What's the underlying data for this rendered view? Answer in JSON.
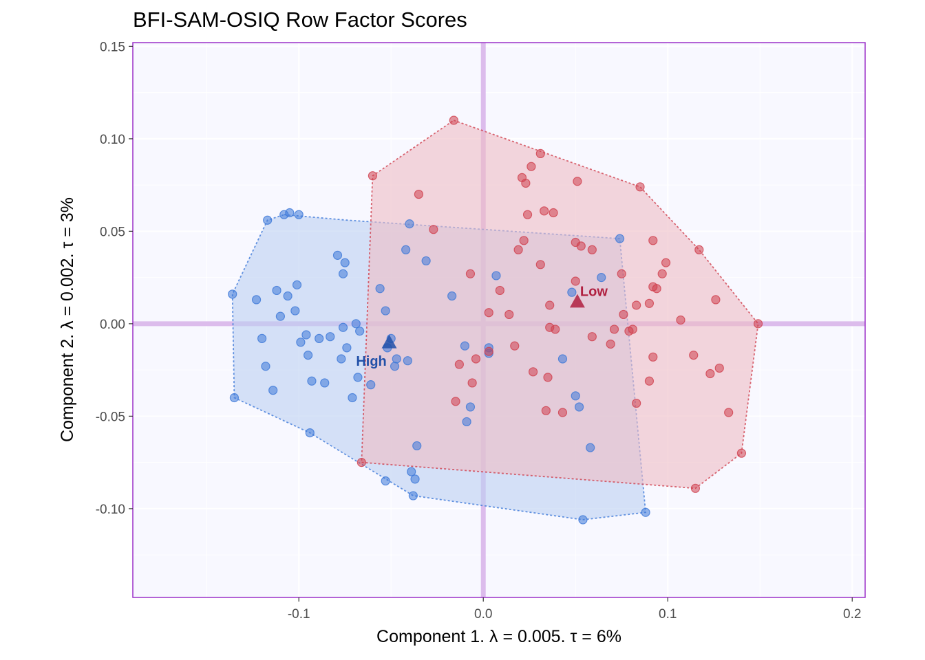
{
  "chart_data": {
    "type": "scatter",
    "title": "BFI-SAM-OSIQ Row Factor Scores",
    "xlabel": "Component 1.   λ = 0.005.  τ = 6%",
    "ylabel": "Component 2.   λ = 0.002.  τ = 3%",
    "xlim": [
      -0.19,
      0.207
    ],
    "ylim": [
      -0.148,
      0.152
    ],
    "xticks": [
      -0.1,
      0.0,
      0.1,
      0.2
    ],
    "xtick_labels": [
      "-0.1",
      "0.0",
      "0.1",
      "0.2"
    ],
    "yticks": [
      -0.1,
      -0.05,
      0.0,
      0.05,
      0.1,
      0.15
    ],
    "ytick_labels": [
      "-0.10",
      "-0.05",
      "0.00",
      "0.05",
      "0.10",
      "0.15"
    ],
    "grid": true,
    "background_color": "#f8f8ff",
    "border_color": "#9b30c8",
    "origin_line_color": "#dcbcec",
    "groups": [
      {
        "name": "High",
        "color": "#3c78d8",
        "fill": "#bcd0f2",
        "label_color": "#2150a8",
        "mean": [
          -0.051,
          -0.01
        ],
        "hull": [
          [
            -0.108,
            0.059
          ],
          [
            -0.074,
            0.056
          ],
          [
            0.074,
            0.046
          ],
          [
            0.088,
            -0.102
          ],
          [
            0.054,
            -0.106
          ],
          [
            -0.038,
            -0.093
          ],
          [
            -0.094,
            -0.059
          ],
          [
            -0.135,
            -0.04
          ],
          [
            -0.136,
            0.016
          ],
          [
            -0.117,
            0.056
          ]
        ],
        "points": [
          [
            -0.105,
            0.06
          ],
          [
            -0.1,
            0.059
          ],
          [
            -0.108,
            0.059
          ],
          [
            -0.117,
            0.056
          ],
          [
            -0.079,
            0.037
          ],
          [
            -0.075,
            0.033
          ],
          [
            -0.076,
            0.027
          ],
          [
            -0.112,
            0.018
          ],
          [
            -0.101,
            0.021
          ],
          [
            -0.106,
            0.015
          ],
          [
            -0.136,
            0.016
          ],
          [
            -0.123,
            0.013
          ],
          [
            -0.11,
            0.004
          ],
          [
            -0.102,
            0.007
          ],
          [
            -0.076,
            -0.002
          ],
          [
            -0.069,
            0.0
          ],
          [
            -0.067,
            -0.004
          ],
          [
            -0.096,
            -0.006
          ],
          [
            -0.089,
            -0.008
          ],
          [
            -0.083,
            -0.007
          ],
          [
            -0.12,
            -0.008
          ],
          [
            -0.099,
            -0.01
          ],
          [
            -0.095,
            -0.017
          ],
          [
            -0.074,
            -0.013
          ],
          [
            -0.077,
            -0.019
          ],
          [
            -0.118,
            -0.023
          ],
          [
            -0.093,
            -0.031
          ],
          [
            -0.086,
            -0.032
          ],
          [
            -0.068,
            -0.029
          ],
          [
            -0.071,
            -0.04
          ],
          [
            -0.114,
            -0.036
          ],
          [
            -0.135,
            -0.04
          ],
          [
            -0.094,
            -0.059
          ],
          [
            -0.053,
            -0.085
          ],
          [
            -0.039,
            -0.08
          ],
          [
            -0.037,
            -0.084
          ],
          [
            -0.038,
            -0.093
          ],
          [
            -0.04,
            0.054
          ],
          [
            -0.042,
            0.04
          ],
          [
            -0.031,
            0.034
          ],
          [
            -0.056,
            0.019
          ],
          [
            -0.053,
            0.007
          ],
          [
            -0.05,
            -0.008
          ],
          [
            -0.052,
            -0.013
          ],
          [
            -0.047,
            -0.019
          ],
          [
            -0.041,
            -0.02
          ],
          [
            -0.048,
            -0.023
          ],
          [
            -0.061,
            -0.033
          ],
          [
            -0.036,
            -0.066
          ],
          [
            0.074,
            0.046
          ],
          [
            0.064,
            0.025
          ],
          [
            0.048,
            0.017
          ],
          [
            0.043,
            -0.019
          ],
          [
            0.05,
            -0.039
          ],
          [
            0.052,
            -0.045
          ],
          [
            0.058,
            -0.067
          ],
          [
            0.088,
            -0.102
          ],
          [
            0.054,
            -0.106
          ],
          [
            -0.017,
            0.015
          ],
          [
            -0.01,
            -0.012
          ],
          [
            -0.007,
            -0.045
          ],
          [
            -0.009,
            -0.053
          ],
          [
            0.007,
            0.026
          ],
          [
            0.003,
            -0.013
          ],
          [
            0.003,
            -0.016
          ]
        ]
      },
      {
        "name": "Low",
        "color": "#d0404e",
        "fill": "#eebcc4",
        "label_color": "#b02040",
        "mean": [
          0.051,
          0.012
        ],
        "hull": [
          [
            -0.016,
            0.11
          ],
          [
            0.085,
            0.074
          ],
          [
            0.117,
            0.04
          ],
          [
            0.149,
            0.0
          ],
          [
            0.14,
            -0.07
          ],
          [
            0.115,
            -0.089
          ],
          [
            -0.066,
            -0.075
          ],
          [
            -0.06,
            0.08
          ]
        ],
        "points": [
          [
            -0.016,
            0.11
          ],
          [
            -0.06,
            0.08
          ],
          [
            -0.035,
            0.07
          ],
          [
            0.031,
            0.092
          ],
          [
            0.026,
            0.085
          ],
          [
            0.021,
            0.079
          ],
          [
            0.023,
            0.076
          ],
          [
            0.051,
            0.077
          ],
          [
            0.085,
            0.074
          ],
          [
            0.033,
            0.061
          ],
          [
            0.038,
            0.06
          ],
          [
            0.024,
            0.059
          ],
          [
            -0.027,
            0.051
          ],
          [
            0.022,
            0.045
          ],
          [
            0.05,
            0.044
          ],
          [
            0.053,
            0.042
          ],
          [
            0.059,
            0.04
          ],
          [
            0.019,
            0.04
          ],
          [
            0.092,
            0.045
          ],
          [
            0.117,
            0.04
          ],
          [
            0.099,
            0.033
          ],
          [
            0.031,
            0.032
          ],
          [
            0.097,
            0.027
          ],
          [
            0.075,
            0.027
          ],
          [
            0.092,
            0.02
          ],
          [
            0.094,
            0.019
          ],
          [
            -0.007,
            0.027
          ],
          [
            0.009,
            0.018
          ],
          [
            0.05,
            0.023
          ],
          [
            0.126,
            0.013
          ],
          [
            0.09,
            0.011
          ],
          [
            0.083,
            0.01
          ],
          [
            0.036,
            0.01
          ],
          [
            0.003,
            0.006
          ],
          [
            0.014,
            0.005
          ],
          [
            0.076,
            0.005
          ],
          [
            0.107,
            0.002
          ],
          [
            0.149,
            0.0
          ],
          [
            0.036,
            -0.002
          ],
          [
            0.039,
            -0.003
          ],
          [
            0.071,
            -0.003
          ],
          [
            0.079,
            -0.004
          ],
          [
            0.081,
            -0.003
          ],
          [
            0.059,
            -0.007
          ],
          [
            0.069,
            -0.011
          ],
          [
            0.017,
            -0.012
          ],
          [
            0.003,
            -0.015
          ],
          [
            -0.004,
            -0.019
          ],
          [
            -0.013,
            -0.022
          ],
          [
            0.092,
            -0.018
          ],
          [
            0.114,
            -0.017
          ],
          [
            0.128,
            -0.024
          ],
          [
            0.123,
            -0.027
          ],
          [
            0.027,
            -0.026
          ],
          [
            0.035,
            -0.029
          ],
          [
            0.09,
            -0.031
          ],
          [
            -0.006,
            -0.032
          ],
          [
            -0.015,
            -0.042
          ],
          [
            0.083,
            -0.043
          ],
          [
            0.034,
            -0.047
          ],
          [
            0.043,
            -0.048
          ],
          [
            0.133,
            -0.048
          ],
          [
            0.14,
            -0.07
          ],
          [
            -0.066,
            -0.075
          ],
          [
            0.115,
            -0.089
          ]
        ]
      }
    ]
  }
}
